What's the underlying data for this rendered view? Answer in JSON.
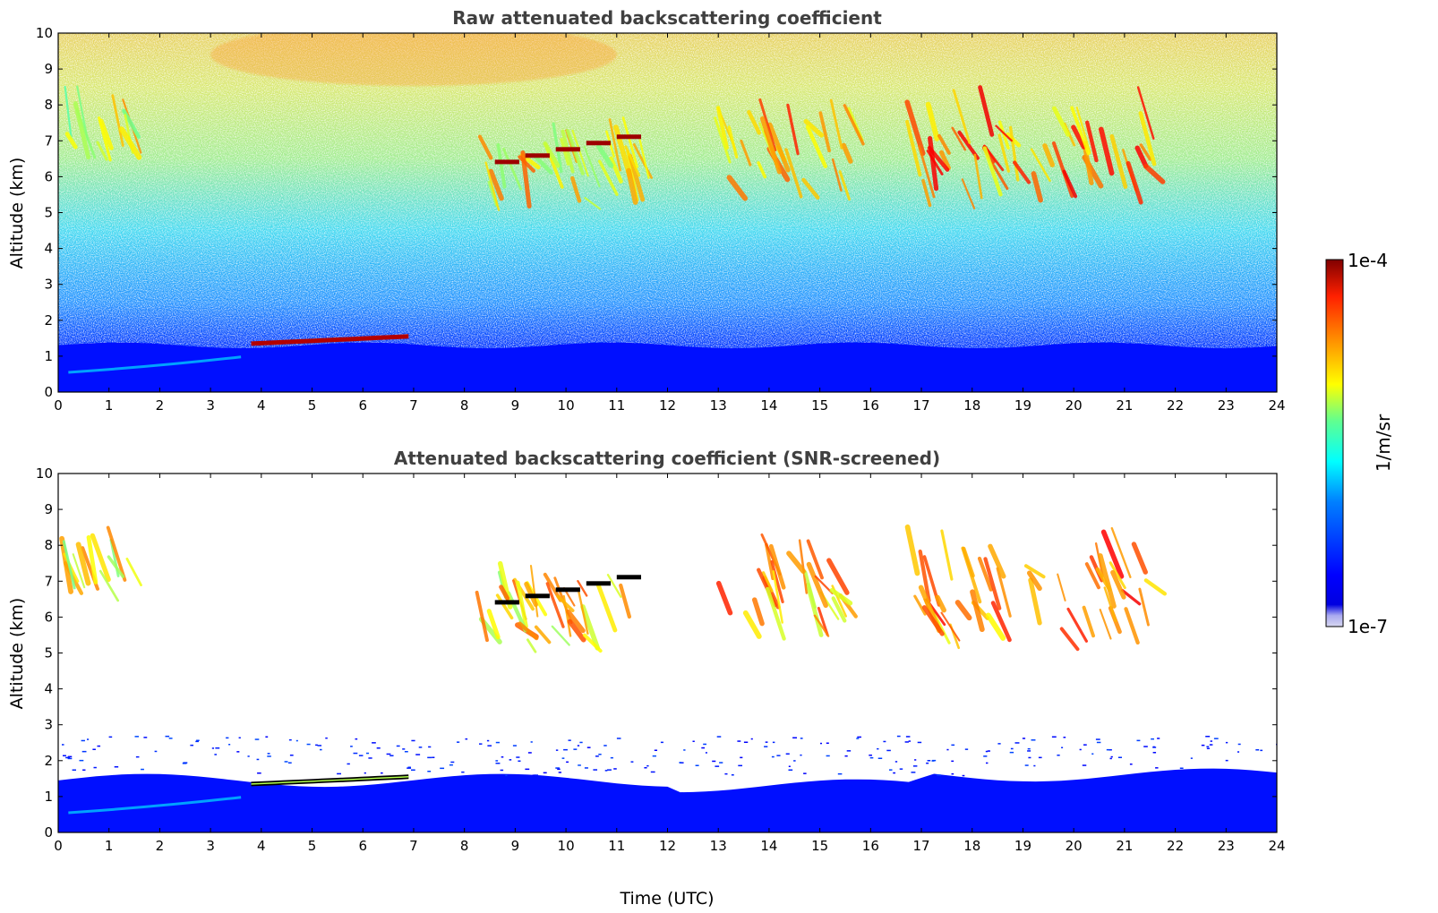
{
  "chart_data": [
    {
      "type": "heatmap",
      "title": "Raw attenuated backscattering coefficient",
      "xlabel": "",
      "ylabel": "Altitude (km)",
      "xlim": [
        0,
        24
      ],
      "ylim": [
        0,
        10
      ],
      "xticks": [
        "0",
        "1",
        "2",
        "3",
        "4",
        "5",
        "6",
        "7",
        "8",
        "9",
        "10",
        "11",
        "12",
        "13",
        "14",
        "15",
        "16",
        "17",
        "18",
        "19",
        "20",
        "21",
        "22",
        "23",
        "24"
      ],
      "yticks": [
        "0",
        "1",
        "2",
        "3",
        "4",
        "5",
        "6",
        "7",
        "8",
        "9",
        "10"
      ],
      "colormap": "jet",
      "log_color_scale": true,
      "features": [
        {
          "kind": "boundary layer",
          "t_start": 0,
          "t_end": 24,
          "alt_top_km": 1.3,
          "level": 0.15
        },
        {
          "kind": "elevated aerosol layer",
          "t_start": 3.8,
          "t_end": 6.9,
          "alt_km": [
            1.35,
            1.55
          ],
          "level": 0.95
        },
        {
          "kind": "cirrus",
          "t_start": 0,
          "t_end": 1.4,
          "alt_km": [
            6.4,
            7.4
          ],
          "level": 0.6
        },
        {
          "kind": "cirrus",
          "t_start": 8.2,
          "t_end": 11.6,
          "alt_km": [
            5.0,
            7.0
          ],
          "level": 0.65
        },
        {
          "kind": "thin liquid layer",
          "t_start": 8.6,
          "t_end": 11.6,
          "alt_km": [
            6.4,
            7.1
          ],
          "level": 0.97
        },
        {
          "kind": "cirrus",
          "t_start": 12.9,
          "t_end": 15.6,
          "alt_km": [
            5.3,
            7.8
          ],
          "level": 0.7
        },
        {
          "kind": "cirrus",
          "t_start": 16.7,
          "t_end": 21.5,
          "alt_km": [
            5.1,
            7.8
          ],
          "level": 0.75
        }
      ]
    },
    {
      "type": "heatmap",
      "title": "Attenuated backscattering coefficient (SNR-screened)",
      "xlabel": "Time (UTC)",
      "ylabel": "Altitude (km)",
      "xlim": [
        0,
        24
      ],
      "ylim": [
        0,
        10
      ],
      "xticks": [
        "0",
        "1",
        "2",
        "3",
        "4",
        "5",
        "6",
        "7",
        "8",
        "9",
        "10",
        "11",
        "12",
        "13",
        "14",
        "15",
        "16",
        "17",
        "18",
        "19",
        "20",
        "21",
        "22",
        "23",
        "24"
      ],
      "yticks": [
        "0",
        "1",
        "2",
        "3",
        "4",
        "5",
        "6",
        "7",
        "8",
        "9",
        "10"
      ],
      "colormap": "jet",
      "log_color_scale": true,
      "screened_background": "#ffffff"
    }
  ],
  "colorbar": {
    "min_label": "1e-7",
    "max_label": "1e-4",
    "label": "1/m/sr"
  },
  "colors": {
    "title": "#404040",
    "screened_background": "#ffffff"
  }
}
